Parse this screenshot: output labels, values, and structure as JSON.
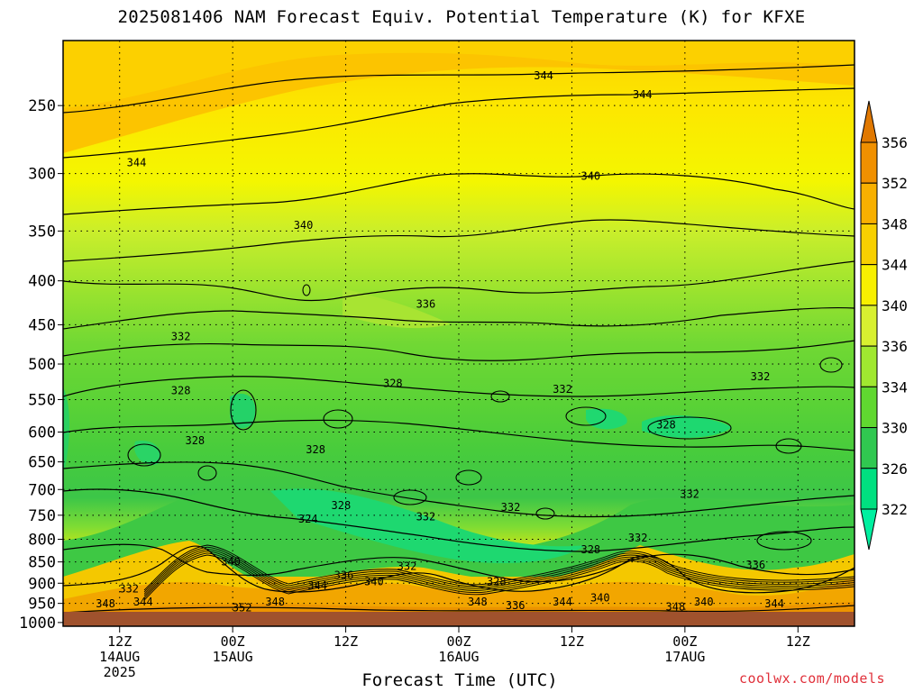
{
  "chart_data": {
    "type": "heatmap",
    "title": "2025081406 NAM Forecast Equiv. Potential Temperature (K) for KFXE",
    "xlabel": "Forecast Time (UTC)",
    "ylabel": "",
    "credit": "coolwx.com/models",
    "y_axis": {
      "scale": "log",
      "inverted": true,
      "range": [
        1010,
        210
      ],
      "ticks": [
        250,
        300,
        350,
        400,
        450,
        500,
        550,
        600,
        650,
        700,
        750,
        800,
        850,
        900,
        950,
        1000
      ]
    },
    "x_axis": {
      "range_hours": [
        6,
        90
      ],
      "ticks": [
        {
          "hour": 12,
          "lines": [
            "12Z",
            "14AUG",
            "2025"
          ]
        },
        {
          "hour": 24,
          "lines": [
            "00Z",
            "15AUG"
          ]
        },
        {
          "hour": 36,
          "lines": [
            "12Z"
          ]
        },
        {
          "hour": 48,
          "lines": [
            "00Z",
            "16AUG"
          ]
        },
        {
          "hour": 60,
          "lines": [
            "12Z"
          ]
        },
        {
          "hour": 72,
          "lines": [
            "00Z",
            "17AUG"
          ]
        },
        {
          "hour": 84,
          "lines": [
            "12Z"
          ]
        }
      ]
    },
    "grid": true,
    "colorbar": {
      "location": "right",
      "labels": [
        "356",
        "352",
        "348",
        "344",
        "340",
        "336",
        "334",
        "330",
        "326",
        "322"
      ],
      "colors": [
        "#e07800",
        "#f09000",
        "#f8b000",
        "#f8d000",
        "#f8f000",
        "#d8f030",
        "#a0e830",
        "#60d830",
        "#30c850",
        "#00e080",
        "#00f0a0"
      ]
    },
    "contour_labels": [
      {
        "text": "344",
        "hour": 13.8,
        "p": 294
      },
      {
        "text": "344",
        "hour": 57,
        "p": 233
      },
      {
        "text": "344",
        "hour": 67.5,
        "p": 245
      },
      {
        "text": "340",
        "hour": 31.5,
        "p": 348
      },
      {
        "text": "340",
        "hour": 62,
        "p": 305
      },
      {
        "text": "336",
        "hour": 44.5,
        "p": 430
      },
      {
        "text": "332",
        "hour": 18.5,
        "p": 469
      },
      {
        "text": "332",
        "hour": 59,
        "p": 540
      },
      {
        "text": "332",
        "hour": 80,
        "p": 522
      },
      {
        "text": "332",
        "hour": 44.5,
        "p": 760
      },
      {
        "text": "332",
        "hour": 42.5,
        "p": 868
      },
      {
        "text": "332",
        "hour": 72.5,
        "p": 716
      },
      {
        "text": "332",
        "hour": 67,
        "p": 805
      },
      {
        "text": "332",
        "hour": 53.5,
        "p": 741
      },
      {
        "text": "328",
        "hour": 18.5,
        "p": 542
      },
      {
        "text": "328",
        "hour": 20,
        "p": 620
      },
      {
        "text": "328",
        "hour": 32.8,
        "p": 635
      },
      {
        "text": "328",
        "hour": 41,
        "p": 532
      },
      {
        "text": "328",
        "hour": 35.5,
        "p": 738
      },
      {
        "text": "328",
        "hour": 70,
        "p": 594
      },
      {
        "text": "328",
        "hour": 62,
        "p": 830
      },
      {
        "text": "328",
        "hour": 52,
        "p": 905
      },
      {
        "text": "324",
        "hour": 32,
        "p": 765
      },
      {
        "text": "340",
        "hour": 23.8,
        "p": 858
      },
      {
        "text": "340",
        "hour": 39,
        "p": 905
      },
      {
        "text": "340",
        "hour": 63,
        "p": 945
      },
      {
        "text": "340",
        "hour": 74,
        "p": 955
      },
      {
        "text": "336",
        "hour": 35.8,
        "p": 890
      },
      {
        "text": "336",
        "hour": 79.5,
        "p": 865
      },
      {
        "text": "336",
        "hour": 54,
        "p": 965
      },
      {
        "text": "344",
        "hour": 33,
        "p": 915
      },
      {
        "text": "344",
        "hour": 59,
        "p": 955
      },
      {
        "text": "344",
        "hour": 14.5,
        "p": 955
      },
      {
        "text": "344",
        "hour": 81.5,
        "p": 960
      },
      {
        "text": "348",
        "hour": 10.5,
        "p": 960
      },
      {
        "text": "348",
        "hour": 28.5,
        "p": 955
      },
      {
        "text": "348",
        "hour": 50,
        "p": 955
      },
      {
        "text": "348",
        "hour": 71,
        "p": 968
      },
      {
        "text": "352",
        "hour": 25,
        "p": 970
      },
      {
        "text": "332",
        "hour": 13,
        "p": 922
      }
    ]
  }
}
